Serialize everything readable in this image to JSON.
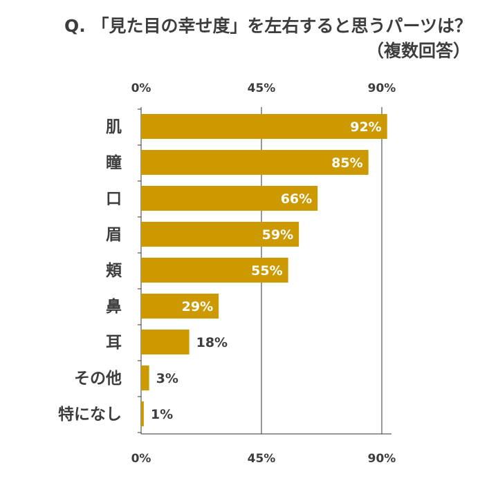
{
  "title": "Q. 「見た目の幸せ度」を左右すると思うパーツは？",
  "subtitle": "（複数回答）",
  "colors": {
    "bar": "#CC9900",
    "text": "#3D3D3D",
    "grid": "#333333",
    "value_inside": "#FFFFFF"
  },
  "chart_data": {
    "type": "bar",
    "orientation": "horizontal",
    "title": "Q. 「見た目の幸せ度」を左右すると思うパーツは？",
    "subtitle": "（複数回答）",
    "categories": [
      "肌",
      "瞳",
      "口",
      "眉",
      "頬",
      "鼻",
      "耳",
      "その他",
      "特になし"
    ],
    "values": [
      92,
      85,
      66,
      59,
      55,
      29,
      18,
      3,
      1
    ],
    "value_labels": [
      "92%",
      "85%",
      "66%",
      "59%",
      "55%",
      "29%",
      "18%",
      "3%",
      "1%"
    ],
    "unit": "%",
    "xlim": [
      0,
      90
    ],
    "ticks": [
      0,
      45,
      90
    ],
    "tick_labels": [
      "0%",
      "45%",
      "90%"
    ],
    "tick_positions": [
      "top",
      "bottom"
    ],
    "grid": true,
    "legend": "none",
    "label_inside_threshold": 25
  }
}
